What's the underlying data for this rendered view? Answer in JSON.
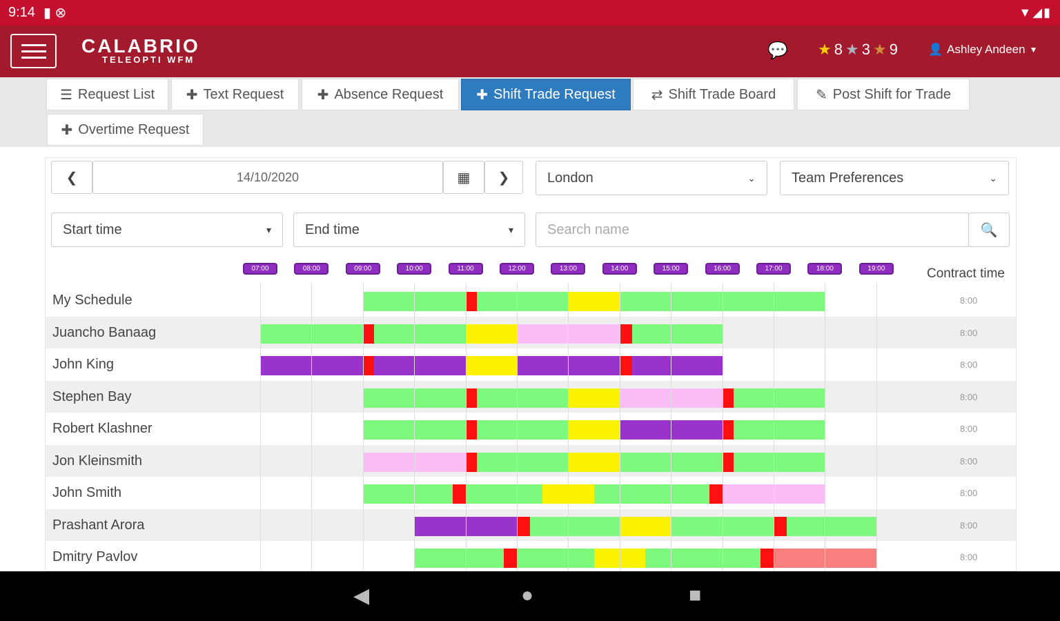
{
  "status_bar": {
    "time": "9:14",
    "icons": "▼◢▮"
  },
  "app": {
    "logo": "CALABRIO",
    "logo_sub": "TELEOPTI WFM",
    "chat_icon": "chat-icon",
    "ratings": [
      {
        "icon": "★",
        "color": "#f5d000",
        "value": "8"
      },
      {
        "icon": "★",
        "color": "#aab4c0",
        "value": "3"
      },
      {
        "icon": "★",
        "color": "#d08a3a",
        "value": "9"
      }
    ],
    "user": "Ashley Andeen"
  },
  "tabs": [
    {
      "icon": "☰",
      "label": "Request List"
    },
    {
      "icon": "✚",
      "label": "Text Request"
    },
    {
      "icon": "✚",
      "label": "Absence Request"
    },
    {
      "icon": "✚",
      "label": "Shift Trade Request",
      "active": true
    },
    {
      "icon": "⇄",
      "label": "Shift Trade Board"
    },
    {
      "icon": "✎",
      "label": "Post Shift for Trade"
    },
    {
      "icon": "✚",
      "label": "Overtime Request"
    }
  ],
  "filters": {
    "date": "14/10/2020",
    "site": "London",
    "team": "Team Preferences",
    "start_time": "Start time",
    "end_time": "End time",
    "search_placeholder": "Search name"
  },
  "times": [
    "07:00",
    "08:00",
    "09:00",
    "10:00",
    "11:00",
    "12:00",
    "13:00",
    "14:00",
    "15:00",
    "16:00",
    "17:00",
    "18:00",
    "19:00"
  ],
  "contract_header": "Contract time",
  "colors": {
    "g": "#7dfa7d",
    "r": "#ff1010",
    "y": "#fbf200",
    "p": "#fbbdf5",
    "v": "#9933cc",
    "s": "#fa8080"
  },
  "rows": [
    {
      "name": "My Schedule",
      "contract": "8:00",
      "segs": [
        [
          9,
          11,
          "g"
        ],
        [
          11,
          11.22,
          "r"
        ],
        [
          11.22,
          13,
          "g"
        ],
        [
          13,
          14,
          "y"
        ],
        [
          14,
          18,
          "g"
        ]
      ]
    },
    {
      "name": "Juancho Banaag",
      "contract": "8:00",
      "segs": [
        [
          7,
          9,
          "g"
        ],
        [
          9,
          9.22,
          "r"
        ],
        [
          9.22,
          11,
          "g"
        ],
        [
          11,
          12,
          "y"
        ],
        [
          12,
          14,
          "p"
        ],
        [
          14,
          14.25,
          "r"
        ],
        [
          14.25,
          16,
          "g"
        ]
      ]
    },
    {
      "name": "John King",
      "contract": "8:00",
      "segs": [
        [
          7,
          9,
          "v"
        ],
        [
          9,
          9.22,
          "r"
        ],
        [
          9.22,
          11,
          "v"
        ],
        [
          11,
          12,
          "y"
        ],
        [
          12,
          14,
          "v"
        ],
        [
          14,
          14.25,
          "r"
        ],
        [
          14.25,
          16,
          "v"
        ]
      ]
    },
    {
      "name": "Stephen Bay",
      "contract": "8:00",
      "segs": [
        [
          9,
          11,
          "g"
        ],
        [
          11,
          11.22,
          "r"
        ],
        [
          11.22,
          13,
          "g"
        ],
        [
          13,
          14,
          "y"
        ],
        [
          14,
          16,
          "p"
        ],
        [
          16,
          16.22,
          "r"
        ],
        [
          16.22,
          18,
          "g"
        ]
      ]
    },
    {
      "name": "Robert Klashner",
      "contract": "8:00",
      "segs": [
        [
          9,
          11,
          "g"
        ],
        [
          11,
          11.22,
          "r"
        ],
        [
          11.22,
          13,
          "g"
        ],
        [
          13,
          14,
          "y"
        ],
        [
          14,
          16,
          "v"
        ],
        [
          16,
          16.22,
          "r"
        ],
        [
          16.22,
          18,
          "g"
        ]
      ]
    },
    {
      "name": "Jon Kleinsmith",
      "contract": "8:00",
      "segs": [
        [
          9,
          11,
          "p"
        ],
        [
          11,
          11.22,
          "r"
        ],
        [
          11.22,
          13,
          "g"
        ],
        [
          13,
          14,
          "y"
        ],
        [
          14,
          16,
          "g"
        ],
        [
          16,
          16.22,
          "r"
        ],
        [
          16.22,
          18,
          "g"
        ]
      ]
    },
    {
      "name": "John Smith",
      "contract": "8:00",
      "segs": [
        [
          9,
          10.75,
          "g"
        ],
        [
          10.75,
          11,
          "r"
        ],
        [
          11,
          12.5,
          "g"
        ],
        [
          12.5,
          13.5,
          "y"
        ],
        [
          13.5,
          15.75,
          "g"
        ],
        [
          15.75,
          16,
          "r"
        ],
        [
          16,
          18,
          "p"
        ]
      ]
    },
    {
      "name": "Prashant Arora",
      "contract": "8:00",
      "segs": [
        [
          10,
          12,
          "v"
        ],
        [
          12,
          12.25,
          "r"
        ],
        [
          12.25,
          14,
          "g"
        ],
        [
          14,
          15,
          "y"
        ],
        [
          15,
          17,
          "g"
        ],
        [
          17,
          17.25,
          "r"
        ],
        [
          17.25,
          19,
          "g"
        ]
      ]
    },
    {
      "name": "Dmitry Pavlov",
      "contract": "8:00",
      "segs": [
        [
          10,
          11.75,
          "g"
        ],
        [
          11.75,
          12,
          "r"
        ],
        [
          12,
          13.5,
          "g"
        ],
        [
          13.5,
          14.5,
          "y"
        ],
        [
          14.5,
          16.75,
          "g"
        ],
        [
          16.75,
          17,
          "r"
        ],
        [
          17,
          19,
          "s"
        ]
      ]
    }
  ],
  "nav": {
    "back": "◀",
    "home": "●",
    "recent": "■"
  }
}
